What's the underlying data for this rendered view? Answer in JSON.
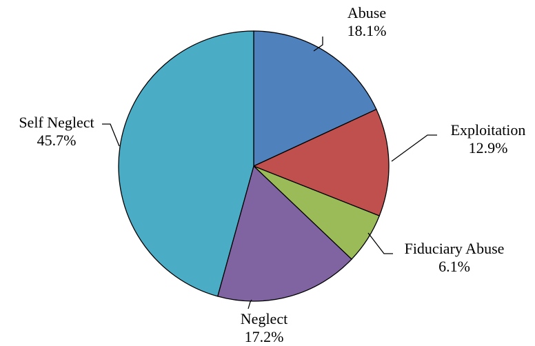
{
  "chart_data": {
    "type": "pie",
    "title": "",
    "start_angle_deg": 0,
    "direction": "clockwise",
    "slices": [
      {
        "name": "Abuse",
        "value": 18.1,
        "label": "18.1%",
        "color": "#4F81BD"
      },
      {
        "name": "Exploitation",
        "value": 12.9,
        "label": "12.9%",
        "color": "#C0504D"
      },
      {
        "name": "Fiduciary Abuse",
        "value": 6.1,
        "label": "6.1%",
        "color": "#9BBB59"
      },
      {
        "name": "Neglect",
        "value": 17.2,
        "label": "17.2%",
        "color": "#8064A2"
      },
      {
        "name": "Self Neglect",
        "value": 45.7,
        "label": "45.7%",
        "color": "#4BACC6"
      }
    ],
    "legend": "none",
    "data_labels": "outside, category name and percentage"
  }
}
